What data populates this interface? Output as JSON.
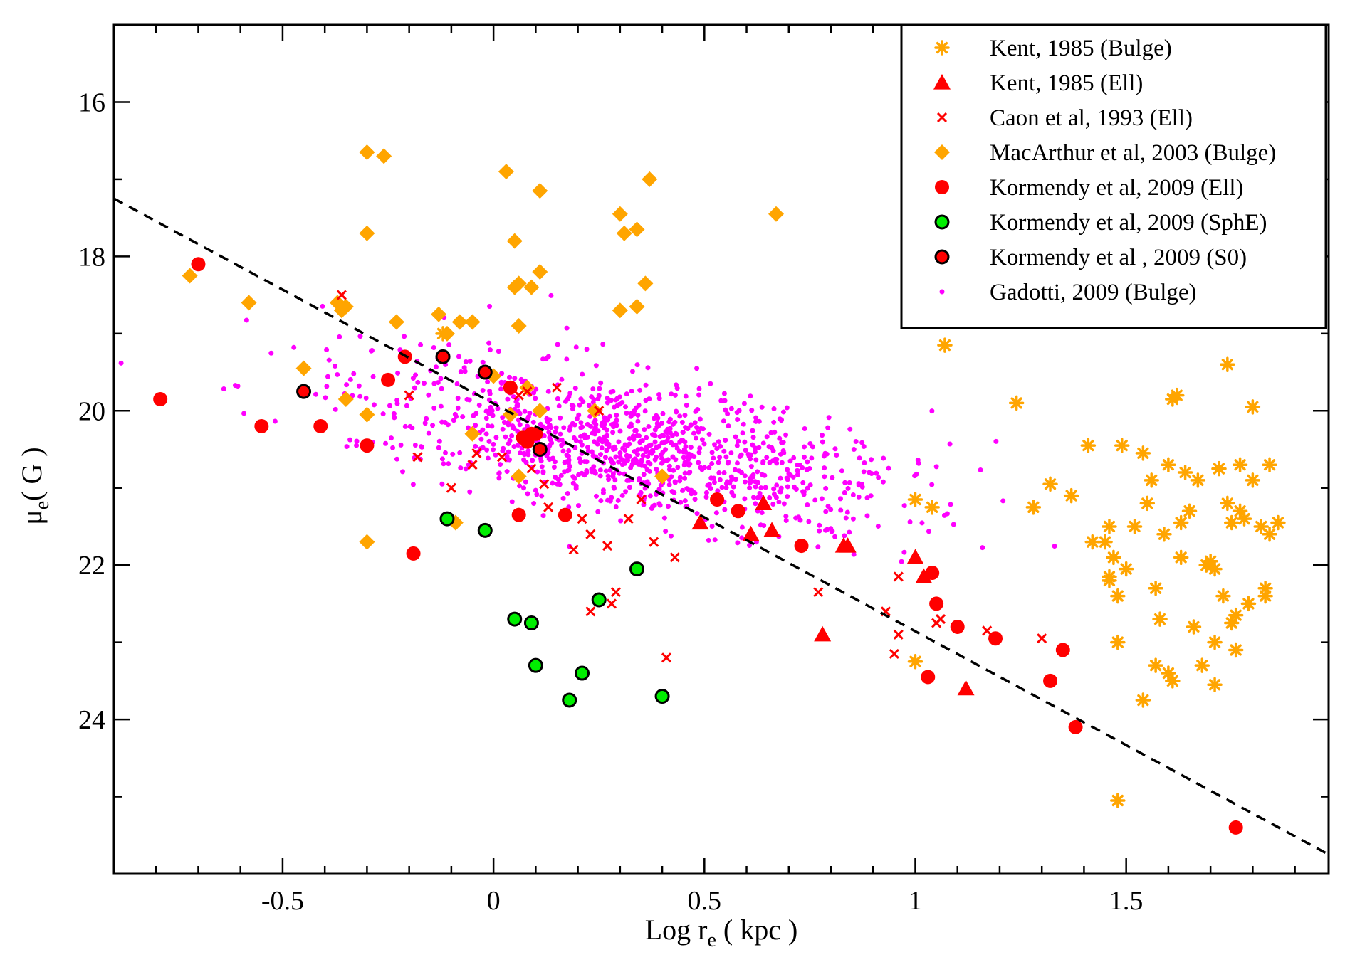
{
  "colors": {
    "kent_bulge": "#ffa500",
    "kent_ell": "#ff0000",
    "caon_ell": "#ff0000",
    "macarthur_bulge": "#ffa500",
    "kormendy_ell": "#ff0000",
    "kormendy_sphe": "#00ee00",
    "kormendy_s0": "#ff0000",
    "gadotti_bulge": "#ff00ff",
    "fit_line": "#000000"
  },
  "chart_data": {
    "type": "scatter",
    "xlabel": {
      "main": "Log r",
      "sub": "e",
      "rest": " ( kpc )"
    },
    "ylabel": {
      "main": "μ",
      "sub": "e",
      "rest": "( G )"
    },
    "xlim": [
      -0.9,
      1.98
    ],
    "ylim": [
      26.0,
      15.0
    ],
    "y_inverted": true,
    "x_ticks": [
      -0.5,
      0,
      0.5,
      1,
      1.5
    ],
    "x_tick_labels": [
      "-0.5",
      "0",
      "0.5",
      "1",
      "1.5"
    ],
    "y_ticks": [
      16,
      18,
      20,
      22,
      24
    ],
    "y_tick_labels": [
      "16",
      "18",
      "20",
      "22",
      "24"
    ],
    "legend_position": "top-right",
    "fit_line": {
      "x": [
        -0.9,
        1.98
      ],
      "y": [
        17.25,
        25.75
      ],
      "style": "dashed"
    },
    "series": [
      {
        "name": "Kent, 1985 (Bulge)",
        "key": "kent_bulge",
        "marker": "asterisk",
        "points": [
          [
            -0.12,
            19.0
          ],
          [
            1.07,
            19.15
          ],
          [
            1.24,
            19.9
          ],
          [
            1.41,
            20.45
          ],
          [
            1.49,
            20.45
          ],
          [
            1.32,
            20.95
          ],
          [
            1.28,
            21.25
          ],
          [
            1.37,
            21.1
          ],
          [
            1.0,
            21.15
          ],
          [
            1.04,
            21.25
          ],
          [
            1.42,
            21.7
          ],
          [
            1.45,
            21.7
          ],
          [
            1.46,
            21.5
          ],
          [
            1.46,
            22.15
          ],
          [
            1.46,
            22.2
          ],
          [
            1.47,
            21.9
          ],
          [
            1.48,
            22.4
          ],
          [
            1.5,
            22.05
          ],
          [
            1.52,
            21.5
          ],
          [
            1.54,
            20.55
          ],
          [
            1.55,
            21.2
          ],
          [
            1.56,
            20.9
          ],
          [
            1.57,
            22.3
          ],
          [
            1.58,
            22.7
          ],
          [
            1.59,
            21.6
          ],
          [
            1.6,
            20.7
          ],
          [
            1.61,
            19.85
          ],
          [
            1.62,
            19.8
          ],
          [
            1.63,
            21.9
          ],
          [
            1.63,
            21.45
          ],
          [
            1.64,
            20.8
          ],
          [
            1.65,
            21.3
          ],
          [
            1.66,
            22.8
          ],
          [
            1.67,
            20.9
          ],
          [
            1.68,
            23.3
          ],
          [
            1.69,
            22.0
          ],
          [
            1.7,
            21.95
          ],
          [
            1.71,
            22.05
          ],
          [
            1.71,
            23.0
          ],
          [
            1.72,
            20.75
          ],
          [
            1.73,
            22.4
          ],
          [
            1.74,
            19.4
          ],
          [
            1.74,
            21.2
          ],
          [
            1.75,
            21.45
          ],
          [
            1.75,
            22.75
          ],
          [
            1.76,
            23.1
          ],
          [
            1.76,
            22.65
          ],
          [
            1.77,
            21.3
          ],
          [
            1.77,
            20.7
          ],
          [
            1.78,
            21.4
          ],
          [
            1.79,
            22.5
          ],
          [
            1.8,
            19.95
          ],
          [
            1.8,
            20.9
          ],
          [
            1.82,
            21.5
          ],
          [
            1.83,
            22.4
          ],
          [
            1.83,
            22.3
          ],
          [
            1.84,
            21.6
          ],
          [
            1.84,
            20.7
          ],
          [
            1.86,
            21.45
          ],
          [
            1.71,
            23.55
          ],
          [
            1.48,
            23.0
          ],
          [
            1.54,
            23.75
          ],
          [
            1.57,
            23.3
          ],
          [
            1.6,
            23.4
          ],
          [
            1.61,
            23.5
          ],
          [
            1.48,
            25.05
          ],
          [
            1.0,
            23.25
          ]
        ]
      },
      {
        "name": "Kent, 1985 (Ell)",
        "key": "kent_ell",
        "marker": "triangle",
        "points": [
          [
            0.49,
            21.45
          ],
          [
            0.61,
            21.6
          ],
          [
            0.64,
            21.2
          ],
          [
            0.66,
            21.55
          ],
          [
            0.78,
            22.9
          ],
          [
            0.83,
            21.75
          ],
          [
            0.84,
            21.75
          ],
          [
            1.0,
            21.9
          ],
          [
            1.02,
            22.15
          ],
          [
            1.12,
            23.6
          ]
        ]
      },
      {
        "name": "Caon et al, 1993 (Ell)",
        "key": "caon_ell",
        "marker": "cross",
        "points": [
          [
            -0.36,
            18.5
          ],
          [
            -0.2,
            19.8
          ],
          [
            -0.18,
            20.6
          ],
          [
            -0.1,
            21.0
          ],
          [
            -0.05,
            20.7
          ],
          [
            -0.04,
            20.55
          ],
          [
            0.02,
            20.6
          ],
          [
            0.06,
            19.8
          ],
          [
            0.08,
            19.75
          ],
          [
            0.09,
            20.75
          ],
          [
            0.12,
            20.95
          ],
          [
            0.13,
            21.25
          ],
          [
            0.15,
            19.7
          ],
          [
            0.19,
            21.8
          ],
          [
            0.21,
            21.4
          ],
          [
            0.23,
            21.6
          ],
          [
            0.23,
            22.6
          ],
          [
            0.25,
            20.0
          ],
          [
            0.27,
            21.75
          ],
          [
            0.28,
            22.5
          ],
          [
            0.29,
            22.35
          ],
          [
            0.32,
            21.4
          ],
          [
            0.35,
            21.15
          ],
          [
            0.38,
            21.7
          ],
          [
            0.41,
            23.2
          ],
          [
            0.43,
            21.9
          ],
          [
            0.77,
            22.35
          ],
          [
            0.93,
            22.6
          ],
          [
            0.95,
            23.15
          ],
          [
            0.96,
            22.15
          ],
          [
            0.96,
            22.9
          ],
          [
            1.05,
            22.75
          ],
          [
            1.06,
            22.7
          ],
          [
            1.17,
            22.85
          ],
          [
            1.3,
            22.95
          ]
        ]
      },
      {
        "name": "MacArthur et al, 2003 (Bulge)",
        "key": "macarthur_bulge",
        "marker": "diamond",
        "points": [
          [
            -0.72,
            18.25
          ],
          [
            -0.58,
            18.6
          ],
          [
            -0.45,
            19.45
          ],
          [
            -0.37,
            18.6
          ],
          [
            -0.36,
            18.7
          ],
          [
            -0.35,
            19.85
          ],
          [
            -0.35,
            18.65
          ],
          [
            -0.3,
            16.65
          ],
          [
            -0.3,
            17.7
          ],
          [
            -0.3,
            20.05
          ],
          [
            -0.3,
            21.7
          ],
          [
            -0.26,
            16.7
          ],
          [
            -0.23,
            18.85
          ],
          [
            -0.13,
            18.75
          ],
          [
            -0.11,
            19.0
          ],
          [
            -0.09,
            21.45
          ],
          [
            -0.08,
            18.85
          ],
          [
            -0.05,
            18.85
          ],
          [
            -0.05,
            20.3
          ],
          [
            0.0,
            19.55
          ],
          [
            0.03,
            16.9
          ],
          [
            0.04,
            20.05
          ],
          [
            0.05,
            18.4
          ],
          [
            0.05,
            17.8
          ],
          [
            0.06,
            18.35
          ],
          [
            0.06,
            18.9
          ],
          [
            0.06,
            20.85
          ],
          [
            0.08,
            19.7
          ],
          [
            0.09,
            18.4
          ],
          [
            0.11,
            17.15
          ],
          [
            0.11,
            18.2
          ],
          [
            0.11,
            20.0
          ],
          [
            0.24,
            20.0
          ],
          [
            0.3,
            17.45
          ],
          [
            0.3,
            18.7
          ],
          [
            0.31,
            17.7
          ],
          [
            0.34,
            17.65
          ],
          [
            0.34,
            18.65
          ],
          [
            0.36,
            18.35
          ],
          [
            0.37,
            17.0
          ],
          [
            0.4,
            20.85
          ],
          [
            0.67,
            17.45
          ]
        ]
      },
      {
        "name": "Kormendy et al, 2009 (Ell)",
        "key": "kormendy_ell",
        "marker": "circle",
        "points": [
          [
            -0.79,
            19.85
          ],
          [
            -0.7,
            18.1
          ],
          [
            -0.55,
            20.2
          ],
          [
            -0.41,
            20.2
          ],
          [
            -0.3,
            20.45
          ],
          [
            -0.25,
            19.6
          ],
          [
            -0.21,
            19.3
          ],
          [
            -0.19,
            21.85
          ],
          [
            0.04,
            19.7
          ],
          [
            0.06,
            21.35
          ],
          [
            0.07,
            20.35
          ],
          [
            0.08,
            20.4
          ],
          [
            0.09,
            20.3
          ],
          [
            0.1,
            20.3
          ],
          [
            0.17,
            21.35
          ],
          [
            0.53,
            21.15
          ],
          [
            0.58,
            21.3
          ],
          [
            0.73,
            21.75
          ],
          [
            1.04,
            22.1
          ],
          [
            1.05,
            22.5
          ],
          [
            1.03,
            23.45
          ],
          [
            1.1,
            22.8
          ],
          [
            1.19,
            22.95
          ],
          [
            1.32,
            23.5
          ],
          [
            1.35,
            23.1
          ],
          [
            1.38,
            24.1
          ],
          [
            1.76,
            25.4
          ]
        ]
      },
      {
        "name": "Kormendy et al, 2009 (SphE)",
        "key": "kormendy_sphe",
        "marker": "circle-outlined",
        "points": [
          [
            -0.11,
            21.4
          ],
          [
            -0.02,
            21.55
          ],
          [
            0.05,
            22.7
          ],
          [
            0.09,
            22.75
          ],
          [
            0.1,
            23.3
          ],
          [
            0.18,
            23.75
          ],
          [
            0.21,
            23.4
          ],
          [
            0.25,
            22.45
          ],
          [
            0.34,
            22.05
          ],
          [
            0.4,
            23.7
          ]
        ]
      },
      {
        "name": "Kormendy et al , 2009 (S0)",
        "key": "kormendy_s0",
        "marker": "circle-outlined",
        "points": [
          [
            -0.45,
            19.75
          ],
          [
            -0.12,
            19.3
          ],
          [
            -0.02,
            19.5
          ],
          [
            0.11,
            20.5
          ]
        ]
      },
      {
        "name": "Gadotti, 2009 (Bulge)",
        "key": "gadotti_bulge",
        "marker": "dot",
        "count": 1100,
        "center": [
          0.32,
          20.45
        ],
        "spread": [
          0.32,
          0.8
        ],
        "slope": 1.35
      }
    ]
  }
}
